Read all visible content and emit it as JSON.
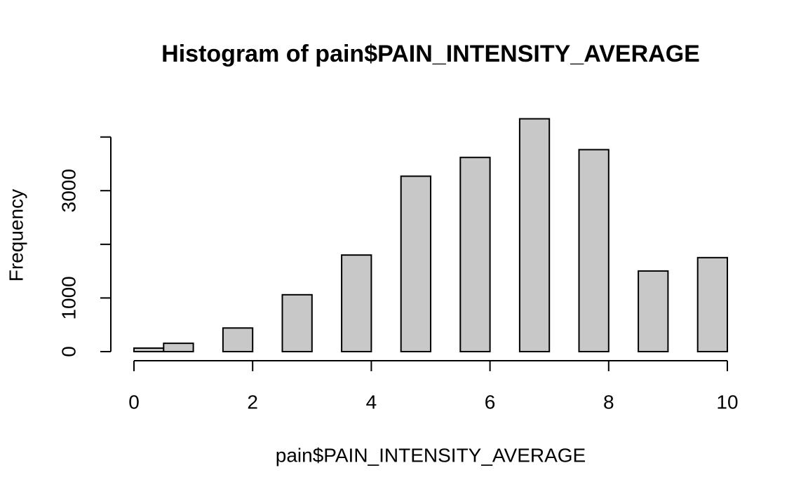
{
  "chart_data": {
    "type": "histogram",
    "title": "Histogram of pain$PAIN_INTENSITY_AVERAGE",
    "x_label": "pain$PAIN_INTENSITY_AVERAGE",
    "y_label": "Frequency",
    "bins": [
      0,
      0.5,
      1,
      1.5,
      2,
      2.5,
      3,
      3.5,
      4,
      4.5,
      5,
      5.5,
      6,
      6.5,
      7,
      7.5,
      8,
      8.5,
      9,
      9.5,
      10
    ],
    "values": [
      65,
      155,
      0,
      440,
      0,
      1060,
      0,
      1800,
      0,
      3270,
      0,
      3620,
      0,
      4340,
      0,
      3765,
      0,
      1503,
      0,
      1752
    ],
    "color": "#c8c8c8",
    "xlim": [
      0,
      10
    ],
    "xticks": [
      0,
      2,
      4,
      6,
      8,
      10
    ],
    "ylim": [
      0,
      4400
    ],
    "yticks": [
      0,
      1000,
      2000,
      3000,
      4000
    ]
  }
}
